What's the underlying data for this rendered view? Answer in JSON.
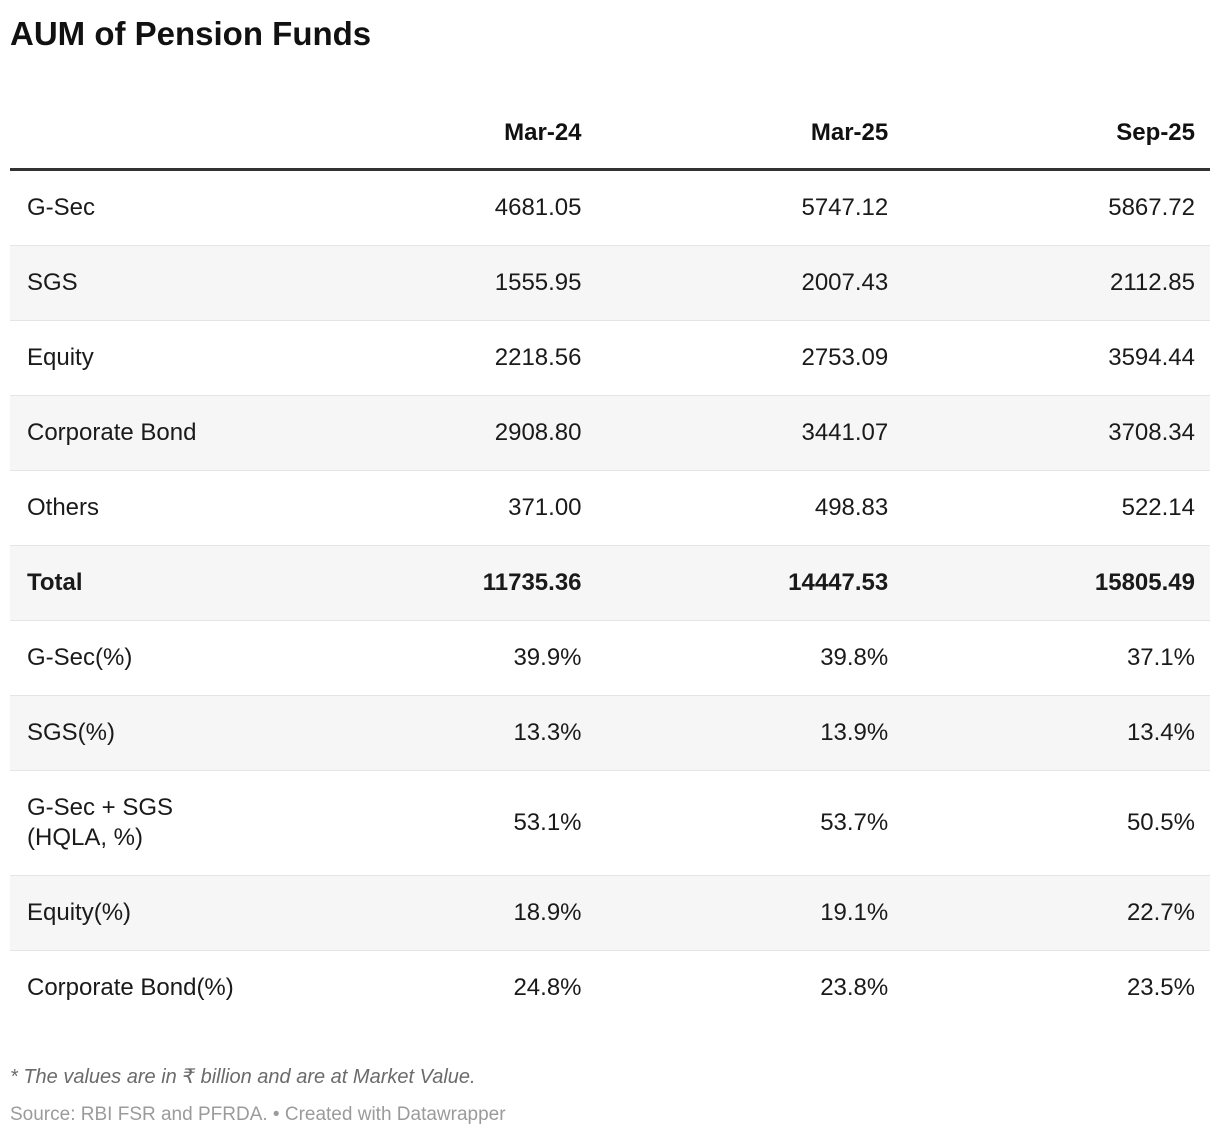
{
  "chart_data": {
    "type": "table",
    "title": "AUM of Pension Funds",
    "columns": [
      "Mar-24",
      "Mar-25",
      "Sep-25"
    ],
    "rows": [
      {
        "label": "G-Sec",
        "values": [
          "4681.05",
          "5747.12",
          "5867.72"
        ],
        "bold": false
      },
      {
        "label": "SGS",
        "values": [
          "1555.95",
          "2007.43",
          "2112.85"
        ],
        "bold": false
      },
      {
        "label": "Equity",
        "values": [
          "2218.56",
          "2753.09",
          "3594.44"
        ],
        "bold": false
      },
      {
        "label": "Corporate Bond",
        "values": [
          "2908.80",
          "3441.07",
          "3708.34"
        ],
        "bold": false
      },
      {
        "label": "Others",
        "values": [
          "371.00",
          "498.83",
          "522.14"
        ],
        "bold": false
      },
      {
        "label": "Total",
        "values": [
          "11735.36",
          "14447.53",
          "15805.49"
        ],
        "bold": true
      },
      {
        "label": "G-Sec(%)",
        "values": [
          "39.9%",
          "39.8%",
          "37.1%"
        ],
        "bold": false
      },
      {
        "label": "SGS(%)",
        "values": [
          "13.3%",
          "13.9%",
          "13.4%"
        ],
        "bold": false
      },
      {
        "label": "G-Sec + SGS\n(HQLA, %)",
        "values": [
          "53.1%",
          "53.7%",
          "50.5%"
        ],
        "bold": false
      },
      {
        "label": "Equity(%)",
        "values": [
          "18.9%",
          "19.1%",
          "22.7%"
        ],
        "bold": false
      },
      {
        "label": "Corporate Bond(%)",
        "values": [
          "24.8%",
          "23.8%",
          "23.5%"
        ],
        "bold": false
      }
    ],
    "layout": {
      "striped_rows": true,
      "value_alignment": "right"
    }
  },
  "footnote": "* The values are in ₹ billion and are at Market Value.",
  "source": "Source: RBI FSR and PFRDA. • Created with Datawrapper",
  "colors": {
    "text": "#1a1a1a",
    "title": "#111111",
    "stripe": "#f6f6f6",
    "row_border": "#e5e5e5",
    "header_rule": "#333333",
    "footnote": "#6b6b6b",
    "source": "#9b9b9b",
    "background": "#ffffff"
  }
}
